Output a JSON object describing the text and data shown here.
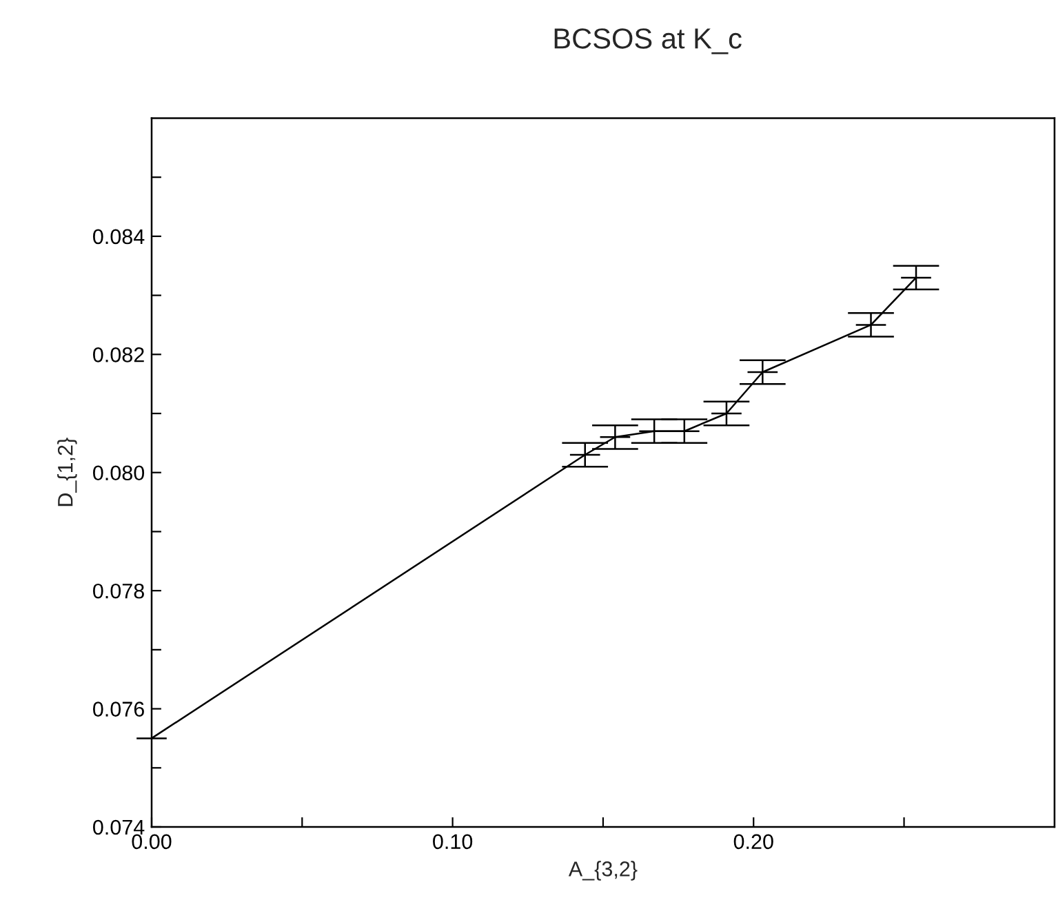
{
  "chart_data": {
    "type": "line",
    "title": "BCSOS at K_c",
    "xlabel": "A_{3,2}",
    "ylabel": "D_{1,2}",
    "x": [
      0.0,
      0.144,
      0.154,
      0.167,
      0.177,
      0.191,
      0.203,
      0.239,
      0.254
    ],
    "values": [
      0.0755,
      0.0803,
      0.0806,
      0.0807,
      0.0807,
      0.081,
      0.0817,
      0.0825,
      0.0833
    ],
    "xerrors": [
      0.005,
      0.005,
      0.005,
      0.005,
      0.005,
      0.005,
      0.005,
      0.005,
      0.005
    ],
    "errors": [
      null,
      0.0002,
      0.0002,
      0.0002,
      0.0002,
      0.0002,
      0.0002,
      0.0002,
      0.0002
    ],
    "color": "#000000",
    "line_style": "solid",
    "xlim": [
      0,
      0.3
    ],
    "ylim": [
      0.074,
      0.086
    ],
    "xticks": [
      {
        "value": 0,
        "label": "0.00"
      },
      {
        "value": 0.05,
        "label": null
      },
      {
        "value": 0.1,
        "label": "0.10"
      },
      {
        "value": 0.15,
        "label": null
      },
      {
        "value": 0.2,
        "label": "0.20"
      },
      {
        "value": 0.25,
        "label": null
      }
    ],
    "yticks": [
      {
        "value": 0.074,
        "label": "0.074"
      },
      {
        "value": 0.075,
        "label": null
      },
      {
        "value": 0.076,
        "label": "0.076"
      },
      {
        "value": 0.077,
        "label": null
      },
      {
        "value": 0.078,
        "label": "0.078"
      },
      {
        "value": 0.079,
        "label": null
      },
      {
        "value": 0.08,
        "label": "0.080"
      },
      {
        "value": 0.081,
        "label": null
      },
      {
        "value": 0.082,
        "label": "0.082"
      },
      {
        "value": 0.083,
        "label": null
      },
      {
        "value": 0.084,
        "label": "0.084"
      },
      {
        "value": 0.085,
        "label": null
      }
    ],
    "grid": false,
    "legend": false
  }
}
